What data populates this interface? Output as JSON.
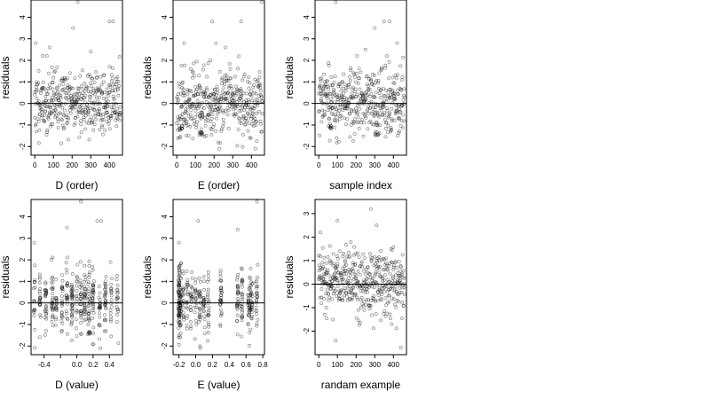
{
  "chart_data": [
    {
      "type": "scatter",
      "xlabel": "D (order)",
      "ylabel": "residuals",
      "xticks": [
        0,
        100,
        200,
        300,
        400
      ],
      "yticks": [
        -2,
        -1,
        0,
        1,
        2,
        3,
        4
      ],
      "xlim": [
        -20,
        470
      ],
      "ylim": [
        -2.4,
        4.8
      ],
      "hline": 0,
      "seed": 11,
      "n": 420,
      "x_values": "sample order 0-460 (~420 points)",
      "outliers": [
        [
          230,
          4.7
        ],
        [
          5,
          2.8
        ],
        [
          205,
          3.5
        ],
        [
          400,
          3.8
        ],
        [
          420,
          3.8
        ],
        [
          80,
          2.6
        ],
        [
          300,
          2.4
        ]
      ]
    },
    {
      "type": "scatter",
      "xlabel": "E (order)",
      "ylabel": "residuals",
      "xticks": [
        0,
        100,
        200,
        300,
        400
      ],
      "yticks": [
        -2,
        -1,
        0,
        1,
        2,
        3,
        4
      ],
      "xlim": [
        -20,
        470
      ],
      "ylim": [
        -2.4,
        4.8
      ],
      "hline": 0,
      "seed": 23,
      "n": 420,
      "outliers": [
        [
          455,
          4.7
        ],
        [
          190,
          3.8
        ],
        [
          345,
          3.8
        ],
        [
          40,
          2.8
        ],
        [
          210,
          2.8
        ],
        [
          260,
          2.6
        ]
      ],
      "clusters": [
        [
          20,
          -1.1,
          8
        ],
        [
          130,
          -1.4,
          10
        ]
      ]
    },
    {
      "type": "scatter",
      "xlabel": "sample index",
      "ylabel": "residuals",
      "xticks": [
        0,
        100,
        200,
        300,
        400
      ],
      "yticks": [
        -2,
        -1,
        0,
        1,
        2,
        3,
        4
      ],
      "xlim": [
        -20,
        470
      ],
      "ylim": [
        -2.4,
        4.8
      ],
      "hline": 0,
      "seed": 37,
      "n": 420,
      "outliers": [
        [
          90,
          4.7
        ],
        [
          350,
          3.8
        ],
        [
          380,
          3.8
        ],
        [
          300,
          3.5
        ],
        [
          420,
          2.8
        ],
        [
          250,
          2.5
        ]
      ],
      "clusters": [
        [
          60,
          -1.1,
          8
        ],
        [
          310,
          -1.4,
          8
        ]
      ]
    },
    {
      "type": "scatter",
      "xlabel": "D (value)",
      "ylabel": "residuals",
      "xticks": [
        -0.4,
        -0.2,
        0.0,
        0.2,
        0.4
      ],
      "xtick_labels": [
        "-0.4",
        "",
        "0.0",
        "0.2",
        "0.4"
      ],
      "yticks": [
        -2,
        -1,
        0,
        1,
        2,
        3,
        4
      ],
      "xlim": [
        -0.56,
        0.56
      ],
      "ylim": [
        -2.4,
        4.8
      ],
      "hline": 0,
      "seed": 53,
      "n": 420,
      "columns": [
        -0.52,
        -0.45,
        -0.38,
        -0.3,
        -0.25,
        -0.18,
        -0.12,
        -0.06,
        0.0,
        0.05,
        0.1,
        0.15,
        0.2,
        0.28,
        0.35,
        0.42,
        0.5
      ],
      "outliers": [
        [
          0.05,
          4.7
        ],
        [
          -0.52,
          2.8
        ],
        [
          -0.12,
          3.5
        ],
        [
          0.25,
          3.8
        ],
        [
          0.3,
          3.8
        ]
      ],
      "clusters": [
        [
          0.15,
          -1.4,
          8
        ]
      ]
    },
    {
      "type": "scatter",
      "xlabel": "E (value)",
      "ylabel": "residuals",
      "xticks": [
        -0.2,
        0.0,
        0.2,
        0.4,
        0.6,
        0.8
      ],
      "xtick_labels": [
        "-0.2",
        "0.0",
        "0.2",
        "0.4",
        "0.6",
        "0.8"
      ],
      "yticks": [
        -2,
        -1,
        0,
        1,
        2,
        3,
        4
      ],
      "xlim": [
        -0.27,
        0.82
      ],
      "ylim": [
        -2.4,
        4.8
      ],
      "hline": 0,
      "seed": 71,
      "n": 420,
      "columns": [
        -0.2,
        -0.2,
        -0.2,
        -0.19,
        -0.18,
        -0.15,
        -0.1,
        -0.05,
        0.0,
        0.05,
        0.1,
        0.15,
        0.3,
        0.5,
        0.55,
        0.63,
        0.65,
        0.67,
        0.73
      ],
      "outliers": [
        [
          0.73,
          4.7
        ],
        [
          0.03,
          3.8
        ],
        [
          0.5,
          3.4
        ],
        [
          -0.2,
          2.8
        ]
      ]
    },
    {
      "type": "scatter",
      "xlabel": "randam example",
      "ylabel": "residuals",
      "xticks": [
        0,
        100,
        200,
        300,
        400
      ],
      "yticks": [
        -2,
        -1,
        0,
        1,
        2,
        3
      ],
      "xlim": [
        -20,
        470
      ],
      "ylim": [
        -3.0,
        3.6
      ],
      "hline": 0,
      "seed": 97,
      "n": 440,
      "outliers": [
        [
          280,
          3.2
        ],
        [
          100,
          2.7
        ],
        [
          310,
          2.5
        ],
        [
          440,
          -2.7
        ],
        [
          90,
          -2.4
        ]
      ]
    }
  ]
}
